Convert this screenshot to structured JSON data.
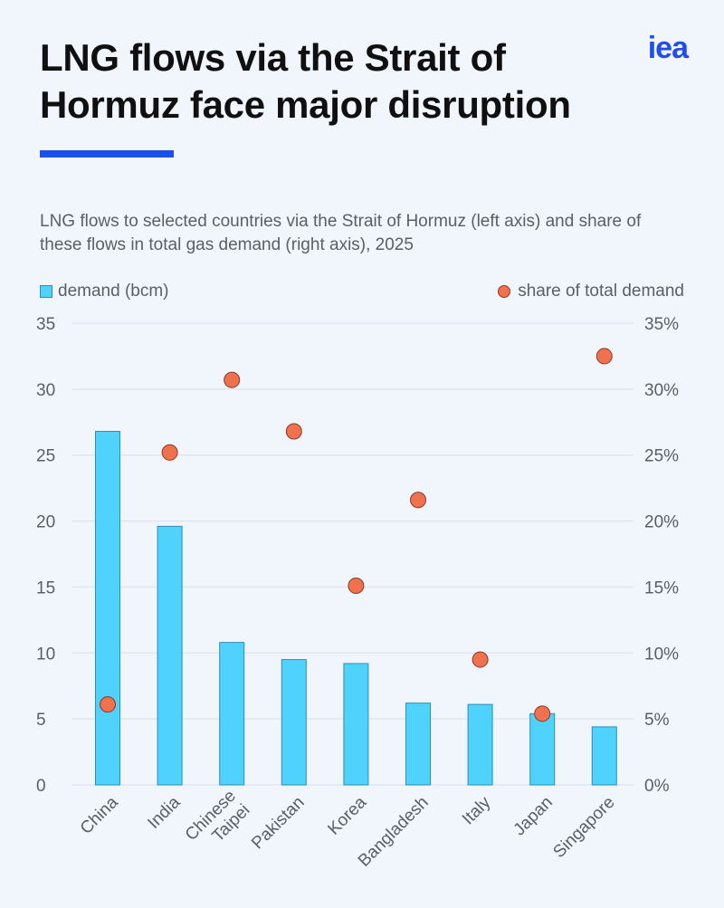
{
  "header": {
    "title": "LNG flows via the Strait of Hormuz face major disruption",
    "logo_text": "iea",
    "brand_color": "#1f4df0"
  },
  "subtitle": "LNG flows to selected countries via the Strait of Hormuz (left axis) and share of these flows in total gas demand (right axis), 2025",
  "legend": {
    "bar_label": "demand (bcm)",
    "dot_label": "share of total demand"
  },
  "chart_data": {
    "type": "bar",
    "title": "LNG flows via the Strait of Hormuz face major disruption",
    "categories": [
      "China",
      "India",
      "Chinese Taipei",
      "Pakistan",
      "Korea",
      "Bangladesh",
      "Italy",
      "Japan",
      "Singapore"
    ],
    "category_lines": [
      [
        "China"
      ],
      [
        "India"
      ],
      [
        "Chinese",
        "Taipei"
      ],
      [
        "Pakistan"
      ],
      [
        "Korea"
      ],
      [
        "Bangladesh"
      ],
      [
        "Italy"
      ],
      [
        "Japan"
      ],
      [
        "Singapore"
      ]
    ],
    "series": [
      {
        "name": "demand (bcm)",
        "type": "bar",
        "axis": "left",
        "values": [
          26.8,
          19.6,
          10.8,
          9.5,
          9.2,
          6.2,
          6.1,
          5.4,
          4.4
        ],
        "color": "#4fd2fb"
      },
      {
        "name": "share of total demand",
        "type": "scatter",
        "axis": "right",
        "values": [
          6.1,
          25.2,
          30.7,
          26.8,
          15.1,
          21.6,
          9.5,
          5.4,
          32.5
        ],
        "color": "#f0714e"
      }
    ],
    "y_left": {
      "ylim": [
        0,
        35
      ],
      "ticks": [
        "0",
        "5",
        "10",
        "15",
        "20",
        "25",
        "30",
        "35"
      ]
    },
    "y_right": {
      "ylim": [
        0,
        35
      ],
      "ticks": [
        "0%",
        "5%",
        "10%",
        "15%",
        "20%",
        "25%",
        "30%",
        "35%"
      ]
    },
    "grid": true,
    "legend_position": "top"
  }
}
